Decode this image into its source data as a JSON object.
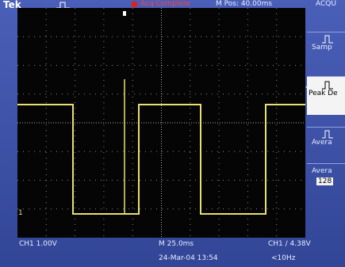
{
  "header": {
    "brand": "Tek",
    "status": "Acq Complete",
    "position": "M Pos: 40.00ms"
  },
  "menu": {
    "title": "ACQU",
    "items": [
      "Samp",
      "Peak De",
      "Avera"
    ],
    "averages": {
      "label": "Avera",
      "value": "128"
    }
  },
  "screen": {
    "channel_marker": "1"
  },
  "footer": {
    "channel": "CH1 1.00V",
    "timebase": "M 25.0ms",
    "trigger": "CH1 ∕ 4.38V",
    "date": "24-Mar-04 13:54",
    "frequency": "<10Hz"
  }
}
